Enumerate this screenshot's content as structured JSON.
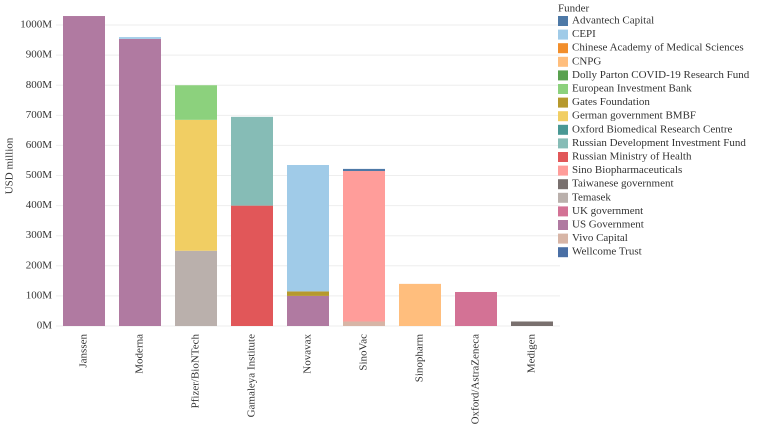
{
  "chart_data": {
    "type": "stacked-bar",
    "y_label": "USD million",
    "legend_title": "Funder",
    "categories": [
      "Janssen",
      "Moderna",
      "Pfizer/BioNTech",
      "Gamaleya Institute",
      "Novavax",
      "SinoVac",
      "Sinopharm",
      "Oxford/AstraZeneca",
      "Medigen"
    ],
    "series": [
      {
        "name": "Advantech Capital",
        "color": "#4e79a7",
        "values": [
          null,
          null,
          null,
          null,
          null,
          7,
          null,
          null,
          null
        ]
      },
      {
        "name": "CEPI",
        "color": "#a0cbe8",
        "values": [
          null,
          6,
          null,
          null,
          420,
          null,
          null,
          null,
          null
        ]
      },
      {
        "name": "Chinese Academy of Medical Sciences",
        "color": "#f28e2b",
        "values": [
          null,
          null,
          null,
          null,
          null,
          null,
          null,
          null,
          null
        ]
      },
      {
        "name": "CNPG",
        "color": "#ffbe7d",
        "values": [
          null,
          null,
          null,
          null,
          null,
          null,
          140,
          null,
          null
        ]
      },
      {
        "name": "Dolly Parton COVID-19 Research Fund",
        "color": "#59a14f",
        "values": [
          null,
          null,
          null,
          null,
          null,
          null,
          null,
          null,
          null
        ]
      },
      {
        "name": "European Investment Bank",
        "color": "#8cd17d",
        "values": [
          null,
          null,
          115,
          null,
          null,
          null,
          null,
          null,
          null
        ]
      },
      {
        "name": "Gates Foundation",
        "color": "#b6992d",
        "values": [
          null,
          null,
          null,
          null,
          15,
          null,
          null,
          null,
          null
        ]
      },
      {
        "name": "German government BMBF",
        "color": "#f1ce63",
        "values": [
          null,
          null,
          435,
          null,
          null,
          null,
          null,
          null,
          null
        ]
      },
      {
        "name": "Oxford Biomedical Research Centre",
        "color": "#499894",
        "values": [
          null,
          null,
          null,
          null,
          null,
          null,
          null,
          null,
          null
        ]
      },
      {
        "name": "Russian Development Investment Fund",
        "color": "#86bcb6",
        "values": [
          null,
          null,
          null,
          295,
          null,
          null,
          null,
          null,
          null
        ]
      },
      {
        "name": "Russian Ministry of Health",
        "color": "#e15759",
        "values": [
          null,
          null,
          null,
          400,
          null,
          null,
          null,
          null,
          null
        ]
      },
      {
        "name": "Sino Biopharmaceuticals",
        "color": "#ff9d9a",
        "values": [
          null,
          null,
          null,
          null,
          null,
          500,
          null,
          null,
          null
        ]
      },
      {
        "name": "Taiwanese government",
        "color": "#79706e",
        "values": [
          null,
          null,
          null,
          null,
          null,
          null,
          null,
          null,
          15
        ]
      },
      {
        "name": "Temasek",
        "color": "#bab0ac",
        "values": [
          null,
          null,
          250,
          null,
          null,
          null,
          null,
          null,
          null
        ]
      },
      {
        "name": "UK government",
        "color": "#d37295",
        "values": [
          null,
          null,
          null,
          null,
          null,
          null,
          null,
          113,
          null
        ]
      },
      {
        "name": "US Government",
        "color": "#b07aa1",
        "values": [
          1030,
          954,
          null,
          null,
          100,
          null,
          null,
          null,
          null
        ]
      },
      {
        "name": "Vivo Capital",
        "color": "#d7b5a6",
        "values": [
          null,
          null,
          null,
          null,
          null,
          15,
          null,
          null,
          null
        ]
      },
      {
        "name": "Wellcome Trust",
        "color": "#4a6fa5",
        "values": [
          null,
          null,
          null,
          null,
          null,
          null,
          null,
          null,
          null
        ]
      }
    ],
    "ylim": [
      0,
      1060
    ],
    "yticks": [
      {
        "value": 0,
        "label": "0M"
      },
      {
        "value": 100,
        "label": "100M"
      },
      {
        "value": 200,
        "label": "200M"
      },
      {
        "value": 300,
        "label": "300M"
      },
      {
        "value": 400,
        "label": "400M"
      },
      {
        "value": 500,
        "label": "500M"
      },
      {
        "value": 600,
        "label": "600M"
      },
      {
        "value": 700,
        "label": "700M"
      },
      {
        "value": 800,
        "label": "800M"
      },
      {
        "value": 900,
        "label": "900M"
      },
      {
        "value": 1000,
        "label": "1000M"
      }
    ],
    "grid": true
  }
}
